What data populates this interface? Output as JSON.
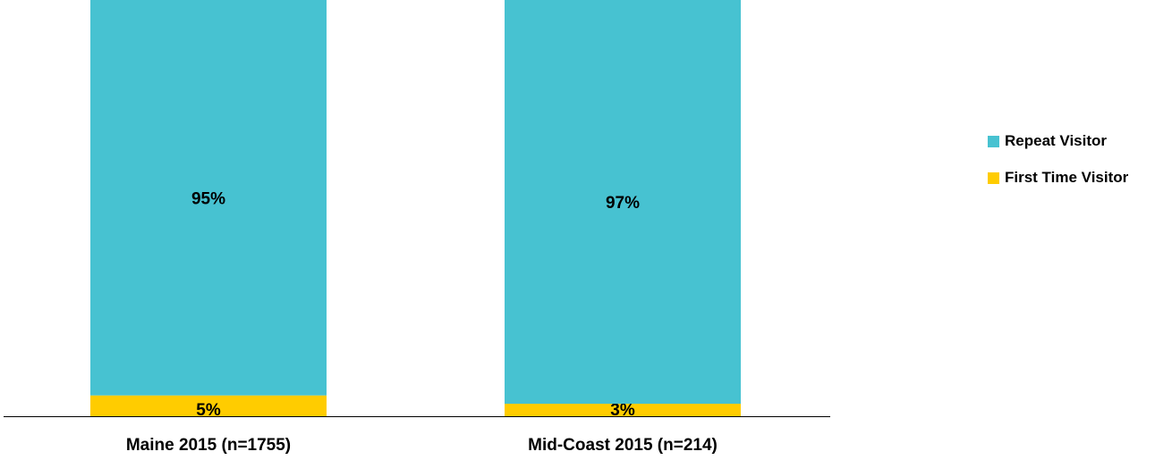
{
  "chart_data": {
    "type": "bar",
    "stacked": true,
    "categories": [
      "Maine 2015 (n=1755)",
      "Mid-Coast 2015 (n=214)"
    ],
    "series": [
      {
        "name": "First Time Visitor",
        "values": [
          5,
          3
        ],
        "labels": [
          "5%",
          "3%"
        ],
        "color": "#FFCC00"
      },
      {
        "name": "Repeat Visitor",
        "values": [
          95,
          97
        ],
        "labels": [
          "95%",
          "97%"
        ],
        "color": "#47C2D1"
      }
    ],
    "ylim": [
      0,
      100
    ],
    "legend_position": "right",
    "grid": false
  },
  "legend": [
    {
      "label": "Repeat Visitor",
      "color": "#47C2D1"
    },
    {
      "label": "First Time Visitor",
      "color": "#FFCC00"
    }
  ]
}
